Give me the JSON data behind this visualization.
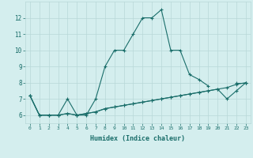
{
  "xlabel": "Humidex (Indice chaleur)",
  "background_color": "#d4eeee",
  "line_color": "#1a6e6a",
  "grid_color": "#b8d8d8",
  "x_values": [
    0,
    1,
    2,
    3,
    4,
    5,
    6,
    7,
    8,
    9,
    10,
    11,
    12,
    13,
    14,
    15,
    16,
    17,
    18,
    19,
    20,
    21,
    22,
    23
  ],
  "series1": [
    7.2,
    6.0,
    6.0,
    6.0,
    7.0,
    6.0,
    6.0,
    7.0,
    9.0,
    10.0,
    10.0,
    11.0,
    12.0,
    12.0,
    12.5,
    10.0,
    10.0,
    8.5,
    8.2,
    7.8,
    null,
    null,
    8.0,
    8.0
  ],
  "series2": [
    7.2,
    6.0,
    6.0,
    6.0,
    6.1,
    6.0,
    6.1,
    6.2,
    6.4,
    6.5,
    6.6,
    6.7,
    6.8,
    6.9,
    7.0,
    7.1,
    7.2,
    7.3,
    7.4,
    7.5,
    7.6,
    7.0,
    7.5,
    8.0
  ],
  "series3": [
    7.2,
    6.0,
    6.0,
    6.0,
    6.1,
    6.0,
    6.1,
    6.2,
    6.4,
    6.5,
    6.6,
    6.7,
    6.8,
    6.9,
    7.0,
    7.1,
    7.2,
    7.3,
    7.4,
    7.5,
    7.6,
    7.7,
    7.9,
    8.0
  ],
  "ylim": [
    5.5,
    13.0
  ],
  "xlim": [
    -0.5,
    23.5
  ],
  "yticks": [
    6,
    7,
    8,
    9,
    10,
    11,
    12
  ],
  "xticks": [
    0,
    1,
    2,
    3,
    4,
    5,
    6,
    7,
    8,
    9,
    10,
    11,
    12,
    13,
    14,
    15,
    16,
    17,
    18,
    19,
    20,
    21,
    22,
    23
  ]
}
